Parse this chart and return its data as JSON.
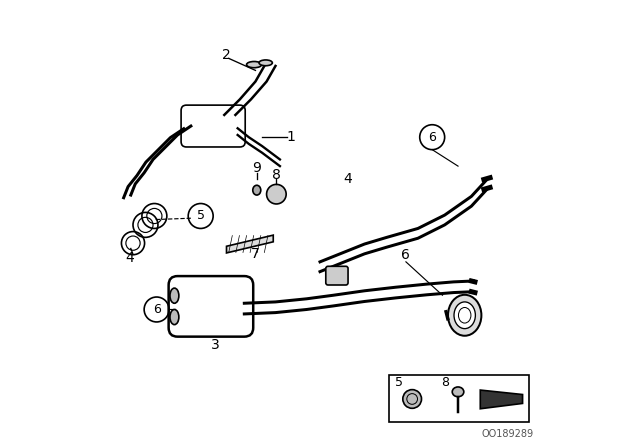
{
  "bg_color": "#ffffff",
  "line_color": "#000000",
  "fig_width": 6.4,
  "fig_height": 4.48,
  "dpi": 100,
  "footer_text": "OO189289"
}
